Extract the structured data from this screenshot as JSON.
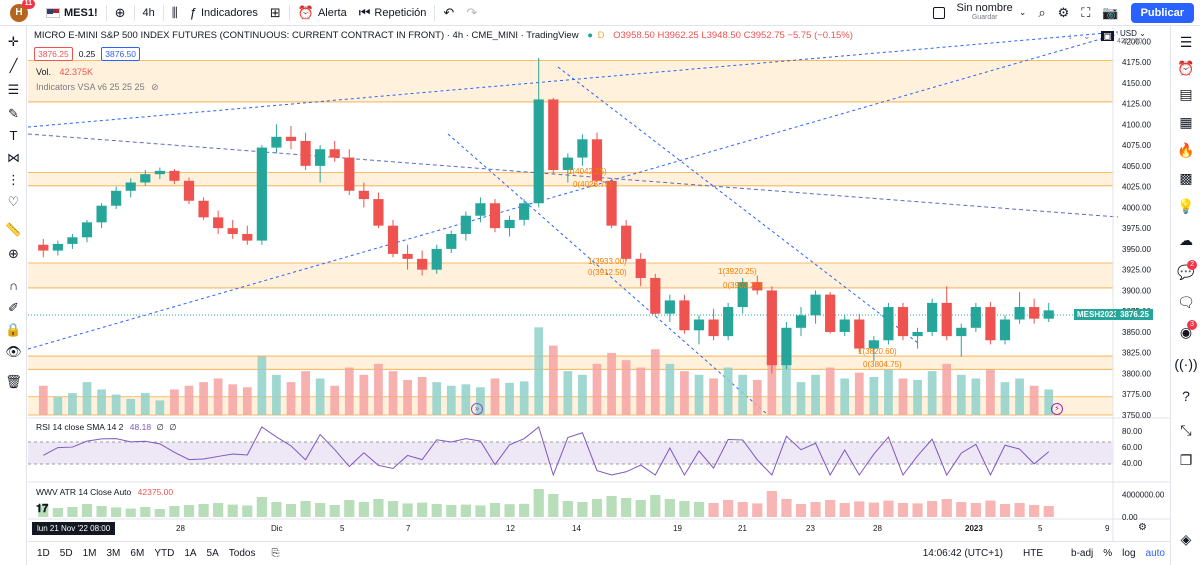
{
  "topbar": {
    "avatar_letter": "H",
    "notif_count": "11",
    "symbol": "MES1!",
    "interval": "4h",
    "indicators_label": "Indicadores",
    "alert_label": "Alerta",
    "replay_label": "Repetición",
    "layout_name": "Sin nombre",
    "layout_save": "Guardar",
    "publish_label": "Publicar"
  },
  "legend": {
    "title": "MICRO E-MINI S&P 500 INDEX FUTURES (CONTINUOUS: CURRENT CONTRACT IN FRONT) · 4h · CME_MINI · TradingView",
    "ohlc": "O3958.50 H3962.25 L3948.50 C3952.75 −5.75 (−0.15%)",
    "sell_price": "3876.25",
    "spread": "0.25",
    "buy_price": "3876.50",
    "volume_label": "Vol.",
    "volume_value": "42.375K",
    "indicator_vsa": "Indicators VSA v6 25 25 25"
  },
  "price_scale": {
    "currency": "USD",
    "ticks": [
      "4200.00",
      "4175.00",
      "4150.00",
      "4125.00",
      "4100.00",
      "4075.00",
      "4050.00",
      "4025.00",
      "4000.00",
      "3975.00",
      "3950.00",
      "3925.00",
      "3900.00",
      "3875.00",
      "3850.00",
      "3825.00",
      "3800.00",
      "3775.00",
      "3750.00"
    ],
    "symbol_tag": "MESH2023",
    "last_price": "3876.25",
    "top_label": "4215.00"
  },
  "fib_labels": [
    "1(4042.25)",
    "0(4026.75)",
    "1(3933.00)",
    "0(3912.50)",
    "1(3920.25)",
    "0(3903.25)",
    "1(3820.60)",
    "0(3804.75)"
  ],
  "rsi": {
    "label": "RSI 14 close SMA 14 2",
    "value": "48.18",
    "na1": "∅",
    "na2": "∅",
    "ticks": [
      "80.00",
      "60.00",
      "40.00"
    ]
  },
  "atr": {
    "label": "WWV ATR 14 Close Auto",
    "value": "42375.00",
    "ticks": [
      "4000000.00",
      "0.00"
    ]
  },
  "time_axis": {
    "current": "lun 21 Nov '22   08:00",
    "ticks": [
      "28",
      "Dic",
      "5",
      "7",
      "12",
      "14",
      "19",
      "21",
      "23",
      "28",
      "2023",
      "5",
      "9"
    ]
  },
  "bottombar": {
    "ranges": [
      "1D",
      "5D",
      "1M",
      "3M",
      "6M",
      "YTD",
      "1A",
      "5A",
      "Todos"
    ],
    "clock": "14:06:42 (UTC+1)",
    "session": "HTE",
    "adj": "b-adj",
    "percent": "%",
    "log": "log",
    "auto": "auto"
  },
  "colors": {
    "up": "#26a69a",
    "down": "#ef5350",
    "zone_fill": "#fff1dc",
    "zone_line": "#f7a93b",
    "trend": "#2962ff",
    "rsi_line": "#7e57c2",
    "accent": "#2962ff"
  },
  "chart_data": {
    "type": "candlestick",
    "title": "MICRO E-MINI S&P 500 INDEX FUTURES · 4h",
    "ylim": [
      3750,
      4210
    ],
    "candles": [
      {
        "t": "Nov 21",
        "o": 3955,
        "h": 3962,
        "l": 3940,
        "c": 3948
      },
      {
        "t": "Nov 21",
        "o": 3948,
        "h": 3960,
        "l": 3942,
        "c": 3956
      },
      {
        "t": "Nov 22",
        "o": 3956,
        "h": 3968,
        "l": 3950,
        "c": 3964
      },
      {
        "t": "Nov 22",
        "o": 3964,
        "h": 3985,
        "l": 3958,
        "c": 3982
      },
      {
        "t": "Nov 23",
        "o": 3982,
        "h": 4005,
        "l": 3975,
        "c": 4002
      },
      {
        "t": "Nov 23",
        "o": 4002,
        "h": 4025,
        "l": 3998,
        "c": 4020
      },
      {
        "t": "Nov 24",
        "o": 4020,
        "h": 4035,
        "l": 4012,
        "c": 4030
      },
      {
        "t": "Nov 25",
        "o": 4030,
        "h": 4045,
        "l": 4026,
        "c": 4040
      },
      {
        "t": "Nov 25",
        "o": 4040,
        "h": 4048,
        "l": 4034,
        "c": 4044
      },
      {
        "t": "Nov 28",
        "o": 4044,
        "h": 4046,
        "l": 4028,
        "c": 4032
      },
      {
        "t": "Nov 28",
        "o": 4032,
        "h": 4036,
        "l": 4004,
        "c": 4008
      },
      {
        "t": "Nov 29",
        "o": 4008,
        "h": 4012,
        "l": 3985,
        "c": 3988
      },
      {
        "t": "Nov 29",
        "o": 3988,
        "h": 3996,
        "l": 3968,
        "c": 3975
      },
      {
        "t": "Nov 30",
        "o": 3975,
        "h": 3985,
        "l": 3962,
        "c": 3968
      },
      {
        "t": "Nov 30",
        "o": 3968,
        "h": 3978,
        "l": 3955,
        "c": 3960
      },
      {
        "t": "Nov 30",
        "o": 3960,
        "h": 4075,
        "l": 3955,
        "c": 4072
      },
      {
        "t": "Dic 1",
        "o": 4072,
        "h": 4100,
        "l": 4065,
        "c": 4085
      },
      {
        "t": "Dic 1",
        "o": 4085,
        "h": 4098,
        "l": 4070,
        "c": 4080
      },
      {
        "t": "Dic 1",
        "o": 4080,
        "h": 4090,
        "l": 4045,
        "c": 4050
      },
      {
        "t": "Dic 2",
        "o": 4050,
        "h": 4075,
        "l": 4030,
        "c": 4070
      },
      {
        "t": "Dic 2",
        "o": 4070,
        "h": 4080,
        "l": 4055,
        "c": 4060
      },
      {
        "t": "Dic 5",
        "o": 4060,
        "h": 4070,
        "l": 4015,
        "c": 4020
      },
      {
        "t": "Dic 5",
        "o": 4020,
        "h": 4030,
        "l": 4000,
        "c": 4010
      },
      {
        "t": "Dic 6",
        "o": 4010,
        "h": 4018,
        "l": 3975,
        "c": 3978
      },
      {
        "t": "Dic 6",
        "o": 3978,
        "h": 3985,
        "l": 3940,
        "c": 3944
      },
      {
        "t": "Dic 7",
        "o": 3944,
        "h": 3955,
        "l": 3925,
        "c": 3938
      },
      {
        "t": "Dic 7",
        "o": 3938,
        "h": 3948,
        "l": 3918,
        "c": 3925
      },
      {
        "t": "Dic 8",
        "o": 3925,
        "h": 3955,
        "l": 3920,
        "c": 3950
      },
      {
        "t": "Dic 8",
        "o": 3950,
        "h": 3972,
        "l": 3945,
        "c": 3968
      },
      {
        "t": "Dic 9",
        "o": 3968,
        "h": 3995,
        "l": 3960,
        "c": 3990
      },
      {
        "t": "Dic 9",
        "o": 3990,
        "h": 4012,
        "l": 3982,
        "c": 4005
      },
      {
        "t": "Dic 12",
        "o": 4005,
        "h": 4010,
        "l": 3970,
        "c": 3975
      },
      {
        "t": "Dic 12",
        "o": 3975,
        "h": 3990,
        "l": 3965,
        "c": 3985
      },
      {
        "t": "Dic 13",
        "o": 3985,
        "h": 4010,
        "l": 3978,
        "c": 4005
      },
      {
        "t": "Dic 13",
        "o": 4005,
        "h": 4180,
        "l": 4000,
        "c": 4130
      },
      {
        "t": "Dic 13",
        "o": 4130,
        "h": 4132,
        "l": 4040,
        "c": 4045
      },
      {
        "t": "Dic 14",
        "o": 4045,
        "h": 4065,
        "l": 4030,
        "c": 4060
      },
      {
        "t": "Dic 14",
        "o": 4060,
        "h": 4088,
        "l": 4050,
        "c": 4082
      },
      {
        "t": "Dic 14",
        "o": 4082,
        "h": 4090,
        "l": 4030,
        "c": 4032
      },
      {
        "t": "Dic 15",
        "o": 4032,
        "h": 4035,
        "l": 3975,
        "c": 3978
      },
      {
        "t": "Dic 15",
        "o": 3978,
        "h": 3985,
        "l": 3935,
        "c": 3938
      },
      {
        "t": "Dic 16",
        "o": 3938,
        "h": 3945,
        "l": 3905,
        "c": 3915
      },
      {
        "t": "Dic 16",
        "o": 3915,
        "h": 3920,
        "l": 3870,
        "c": 3872
      },
      {
        "t": "Dic 19",
        "o": 3872,
        "h": 3895,
        "l": 3862,
        "c": 3888
      },
      {
        "t": "Dic 19",
        "o": 3888,
        "h": 3895,
        "l": 3848,
        "c": 3852
      },
      {
        "t": "Dic 20",
        "o": 3852,
        "h": 3870,
        "l": 3835,
        "c": 3865
      },
      {
        "t": "Dic 20",
        "o": 3865,
        "h": 3878,
        "l": 3840,
        "c": 3845
      },
      {
        "t": "Dic 21",
        "o": 3845,
        "h": 3885,
        "l": 3840,
        "c": 3880
      },
      {
        "t": "Dic 21",
        "o": 3880,
        "h": 3915,
        "l": 3872,
        "c": 3910
      },
      {
        "t": "Dic 22",
        "o": 3910,
        "h": 3918,
        "l": 3895,
        "c": 3900
      },
      {
        "t": "Dic 22",
        "o": 3900,
        "h": 3905,
        "l": 3800,
        "c": 3810
      },
      {
        "t": "Dic 22",
        "o": 3810,
        "h": 3862,
        "l": 3805,
        "c": 3855
      },
      {
        "t": "Dic 23",
        "o": 3855,
        "h": 3880,
        "l": 3845,
        "c": 3870
      },
      {
        "t": "Dic 27",
        "o": 3870,
        "h": 3900,
        "l": 3860,
        "c": 3895
      },
      {
        "t": "Dic 27",
        "o": 3895,
        "h": 3898,
        "l": 3848,
        "c": 3850
      },
      {
        "t": "Dic 28",
        "o": 3850,
        "h": 3870,
        "l": 3845,
        "c": 3865
      },
      {
        "t": "Dic 28",
        "o": 3865,
        "h": 3872,
        "l": 3825,
        "c": 3830
      },
      {
        "t": "Dic 29",
        "o": 3830,
        "h": 3845,
        "l": 3815,
        "c": 3840
      },
      {
        "t": "Dic 29",
        "o": 3840,
        "h": 3885,
        "l": 3835,
        "c": 3880
      },
      {
        "t": "Dic 30",
        "o": 3880,
        "h": 3885,
        "l": 3840,
        "c": 3845
      },
      {
        "t": "Dic 30",
        "o": 3845,
        "h": 3855,
        "l": 3830,
        "c": 3850
      },
      {
        "t": "Ene 3",
        "o": 3850,
        "h": 3890,
        "l": 3845,
        "c": 3885
      },
      {
        "t": "Ene 3",
        "o": 3885,
        "h": 3905,
        "l": 3840,
        "c": 3845
      },
      {
        "t": "Ene 4",
        "o": 3845,
        "h": 3860,
        "l": 3820,
        "c": 3855
      },
      {
        "t": "Ene 4",
        "o": 3855,
        "h": 3885,
        "l": 3850,
        "c": 3880
      },
      {
        "t": "Ene 5",
        "o": 3880,
        "h": 3886,
        "l": 3835,
        "c": 3840
      },
      {
        "t": "Ene 5",
        "o": 3840,
        "h": 3870,
        "l": 3835,
        "c": 3865
      },
      {
        "t": "Ene 6",
        "o": 3865,
        "h": 3898,
        "l": 3860,
        "c": 3880
      },
      {
        "t": "Ene 6",
        "o": 3880,
        "h": 3890,
        "l": 3860,
        "c": 3866
      },
      {
        "t": "Ene 6",
        "o": 3866,
        "h": 3885,
        "l": 3862,
        "c": 3876
      }
    ],
    "volume": [
      40,
      25,
      30,
      45,
      35,
      28,
      22,
      30,
      20,
      35,
      40,
      45,
      50,
      42,
      38,
      80,
      55,
      45,
      60,
      50,
      40,
      65,
      55,
      70,
      60,
      48,
      52,
      45,
      40,
      42,
      38,
      50,
      44,
      46,
      120,
      95,
      60,
      55,
      70,
      85,
      75,
      65,
      90,
      70,
      60,
      55,
      50,
      65,
      55,
      48,
      110,
      70,
      45,
      55,
      65,
      50,
      58,
      52,
      62,
      50,
      48,
      60,
      70,
      55,
      50,
      62,
      45,
      50,
      40,
      35
    ],
    "zones": [
      {
        "from": 4127,
        "to": 4177
      },
      {
        "from": 4026,
        "to": 4042
      },
      {
        "from": 3903,
        "to": 3933
      },
      {
        "from": 3805,
        "to": 3821
      },
      {
        "from": 3750,
        "to": 3772
      }
    ],
    "rsi_range": [
      20,
      90
    ],
    "atr_range": [
      0,
      5000000
    ]
  }
}
